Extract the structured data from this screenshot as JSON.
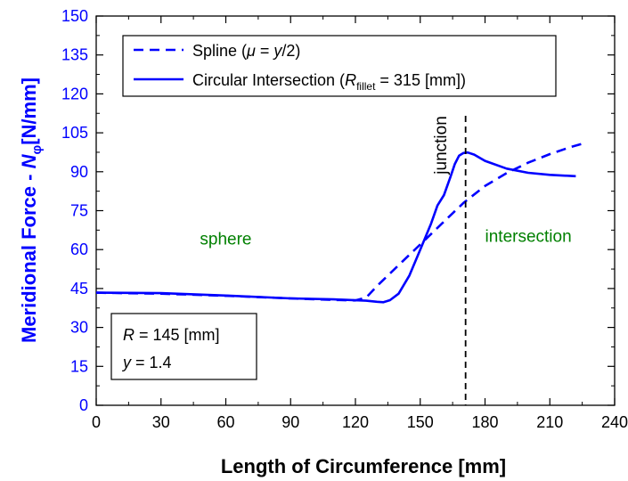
{
  "chart_data": {
    "type": "line",
    "xlabel": "Length of Circumference [mm]",
    "ylabel": {
      "main": "Meridional Force - ",
      "symbol": "N",
      "subscript": "φ",
      "units": "[N/mm]"
    },
    "xlim": [
      0,
      240
    ],
    "ylim": [
      0,
      150
    ],
    "xticks": [
      "0",
      "30",
      "60",
      "90",
      "120",
      "150",
      "180",
      "210",
      "240"
    ],
    "yticks": [
      "0",
      "15",
      "30",
      "45",
      "60",
      "75",
      "90",
      "105",
      "120",
      "135",
      "150"
    ],
    "grid": false,
    "legend_position": "top",
    "series": [
      {
        "name": "Spline (μ = y/2)",
        "legend": {
          "pre": "Spline (",
          "mu": "μ",
          "eq": " = ",
          "y": "y",
          "post": "/2)"
        },
        "style": "dashed",
        "color": "#0000ff",
        "points": [
          [
            0,
            43.4
          ],
          [
            30,
            43.0
          ],
          [
            60,
            42.2
          ],
          [
            90,
            41.2
          ],
          [
            110,
            40.6
          ],
          [
            120,
            40.4
          ],
          [
            125,
            41.5
          ],
          [
            130,
            46
          ],
          [
            140,
            54
          ],
          [
            150,
            62
          ],
          [
            160,
            70
          ],
          [
            170,
            78
          ],
          [
            180,
            84.5
          ],
          [
            190,
            89.5
          ],
          [
            200,
            93.5
          ],
          [
            210,
            96.8
          ],
          [
            220,
            99.6
          ],
          [
            226,
            101
          ]
        ]
      },
      {
        "name": "Circular Intersection (R_fillet = 315 [mm])",
        "legend": {
          "pre": "Circular Intersection (",
          "R": "R",
          "sub": "fillet",
          "post": " = 315 [mm])"
        },
        "style": "solid",
        "color": "#0000ff",
        "points": [
          [
            0,
            43.4
          ],
          [
            30,
            43.2
          ],
          [
            60,
            42.3
          ],
          [
            90,
            41.2
          ],
          [
            110,
            40.8
          ],
          [
            125,
            40.3
          ],
          [
            130,
            39.9
          ],
          [
            133,
            39.7
          ],
          [
            136,
            40.5
          ],
          [
            140,
            43
          ],
          [
            145,
            50
          ],
          [
            150,
            60
          ],
          [
            155,
            70
          ],
          [
            158,
            77
          ],
          [
            161,
            81
          ],
          [
            164,
            88
          ],
          [
            166,
            93
          ],
          [
            168,
            96.2
          ],
          [
            170,
            97.2
          ],
          [
            172,
            97.4
          ],
          [
            175,
            96.6
          ],
          [
            180,
            94.2
          ],
          [
            190,
            91.2
          ],
          [
            200,
            89.6
          ],
          [
            210,
            88.8
          ],
          [
            222,
            88.3
          ]
        ]
      }
    ],
    "annotations": {
      "sphere": "sphere",
      "intersection": "intersection",
      "junction": "junction",
      "junction_x": 171
    },
    "info_box": {
      "line1_var": "R",
      "line1_text": " = 145 [mm]",
      "line2_var": "y",
      "line2_text": " = 1.4"
    },
    "colors": {
      "series": "#0000ff",
      "ylabel": "#0000ff",
      "annotation": "#008000",
      "axis": "#000000"
    }
  }
}
